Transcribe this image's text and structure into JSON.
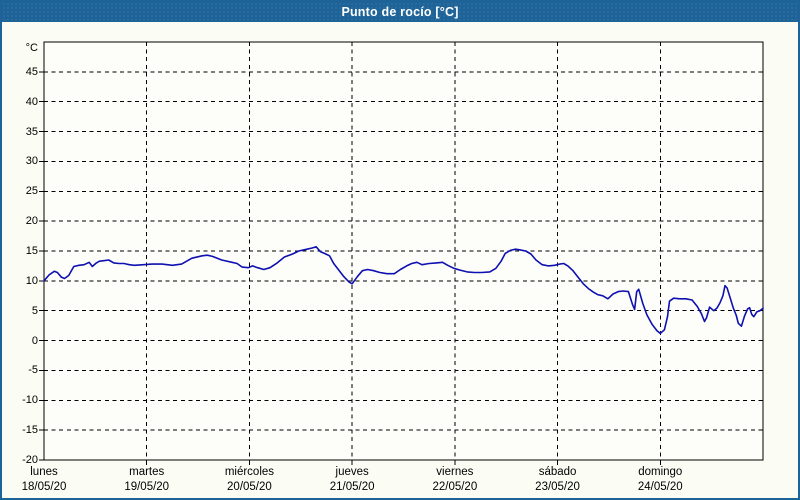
{
  "window": {
    "title": "Punto de rocío [°C]"
  },
  "colors": {
    "frame": "#1d6397",
    "titlebar_bg": "#1d6397",
    "titlebar_text": "#ffffff",
    "page_bg": "#fbfdf5",
    "plot_bg": "#fdfefa",
    "grid": "#000000",
    "text": "#000000",
    "line": "#0f10b0"
  },
  "chart_data": {
    "type": "line",
    "title": "Punto de rocío [°C]",
    "unit_label": "°C",
    "ylim": [
      -20,
      50
    ],
    "ytick_step": 5,
    "yticks": [
      45,
      40,
      35,
      30,
      25,
      20,
      15,
      10,
      5,
      0,
      -5,
      -10,
      -15,
      -20
    ],
    "x_range_days": [
      0,
      7
    ],
    "grid": "dashed-black",
    "legend_position": "none",
    "x_categories": [
      {
        "day": "lunes",
        "date": "18/05/20"
      },
      {
        "day": "martes",
        "date": "19/05/20"
      },
      {
        "day": "miércoles",
        "date": "20/05/20"
      },
      {
        "day": "jueves",
        "date": "21/05/20"
      },
      {
        "day": "viernes",
        "date": "22/05/20"
      },
      {
        "day": "sábado",
        "date": "23/05/20"
      },
      {
        "day": "domingo",
        "date": "24/05/20"
      }
    ],
    "series": [
      {
        "name": "Punto de rocío [°C]",
        "color": "#0f10b0",
        "points_day_temp": [
          [
            0.0,
            10.0
          ],
          [
            0.05,
            11.0
          ],
          [
            0.1,
            11.6
          ],
          [
            0.13,
            11.4
          ],
          [
            0.17,
            10.6
          ],
          [
            0.2,
            10.4
          ],
          [
            0.24,
            10.9
          ],
          [
            0.29,
            12.4
          ],
          [
            0.34,
            12.6
          ],
          [
            0.39,
            12.7
          ],
          [
            0.44,
            13.1
          ],
          [
            0.47,
            12.4
          ],
          [
            0.51,
            13.0
          ],
          [
            0.54,
            13.3
          ],
          [
            0.59,
            13.4
          ],
          [
            0.63,
            13.5
          ],
          [
            0.68,
            13.0
          ],
          [
            0.73,
            12.9
          ],
          [
            0.78,
            12.9
          ],
          [
            0.83,
            12.7
          ],
          [
            0.88,
            12.6
          ],
          [
            0.97,
            12.7
          ],
          [
            1.05,
            12.8
          ],
          [
            1.15,
            12.8
          ],
          [
            1.25,
            12.6
          ],
          [
            1.34,
            12.8
          ],
          [
            1.44,
            13.8
          ],
          [
            1.54,
            14.2
          ],
          [
            1.59,
            14.3
          ],
          [
            1.64,
            14.1
          ],
          [
            1.73,
            13.5
          ],
          [
            1.83,
            13.1
          ],
          [
            1.88,
            12.9
          ],
          [
            1.93,
            12.3
          ],
          [
            1.99,
            12.2
          ],
          [
            2.03,
            12.5
          ],
          [
            2.08,
            12.2
          ],
          [
            2.14,
            11.9
          ],
          [
            2.2,
            12.2
          ],
          [
            2.27,
            13.0
          ],
          [
            2.34,
            14.0
          ],
          [
            2.42,
            14.5
          ],
          [
            2.48,
            15.0
          ],
          [
            2.56,
            15.3
          ],
          [
            2.61,
            15.5
          ],
          [
            2.65,
            15.7
          ],
          [
            2.69,
            14.9
          ],
          [
            2.73,
            14.6
          ],
          [
            2.78,
            14.2
          ],
          [
            2.82,
            12.9
          ],
          [
            2.87,
            11.8
          ],
          [
            2.92,
            10.7
          ],
          [
            2.97,
            9.8
          ],
          [
            3.0,
            9.5
          ],
          [
            3.05,
            10.7
          ],
          [
            3.1,
            11.7
          ],
          [
            3.15,
            11.9
          ],
          [
            3.21,
            11.7
          ],
          [
            3.27,
            11.4
          ],
          [
            3.34,
            11.2
          ],
          [
            3.41,
            11.2
          ],
          [
            3.47,
            11.9
          ],
          [
            3.53,
            12.5
          ],
          [
            3.58,
            12.9
          ],
          [
            3.63,
            13.1
          ],
          [
            3.68,
            12.7
          ],
          [
            3.75,
            12.9
          ],
          [
            3.82,
            13.0
          ],
          [
            3.88,
            13.1
          ],
          [
            3.93,
            12.6
          ],
          [
            3.99,
            12.1
          ],
          [
            4.05,
            11.8
          ],
          [
            4.12,
            11.5
          ],
          [
            4.19,
            11.4
          ],
          [
            4.26,
            11.4
          ],
          [
            4.34,
            11.5
          ],
          [
            4.4,
            12.1
          ],
          [
            4.45,
            13.3
          ],
          [
            4.49,
            14.6
          ],
          [
            4.54,
            15.1
          ],
          [
            4.59,
            15.3
          ],
          [
            4.63,
            15.2
          ],
          [
            4.69,
            15.0
          ],
          [
            4.74,
            14.5
          ],
          [
            4.79,
            13.5
          ],
          [
            4.85,
            12.7
          ],
          [
            4.91,
            12.5
          ],
          [
            4.97,
            12.6
          ],
          [
            5.02,
            12.8
          ],
          [
            5.06,
            12.9
          ],
          [
            5.1,
            12.5
          ],
          [
            5.15,
            11.7
          ],
          [
            5.2,
            10.6
          ],
          [
            5.25,
            9.5
          ],
          [
            5.3,
            8.7
          ],
          [
            5.35,
            8.1
          ],
          [
            5.39,
            7.7
          ],
          [
            5.44,
            7.5
          ],
          [
            5.49,
            7.0
          ],
          [
            5.54,
            7.8
          ],
          [
            5.59,
            8.2
          ],
          [
            5.64,
            8.3
          ],
          [
            5.69,
            8.2
          ],
          [
            5.73,
            6.0
          ],
          [
            5.75,
            5.2
          ],
          [
            5.77,
            8.2
          ],
          [
            5.79,
            8.6
          ],
          [
            5.83,
            6.2
          ],
          [
            5.87,
            4.3
          ],
          [
            5.92,
            2.7
          ],
          [
            5.97,
            1.6
          ],
          [
            6.0,
            1.2
          ],
          [
            6.04,
            1.8
          ],
          [
            6.07,
            4.0
          ],
          [
            6.09,
            6.6
          ],
          [
            6.13,
            7.1
          ],
          [
            6.19,
            7.0
          ],
          [
            6.25,
            7.0
          ],
          [
            6.31,
            6.8
          ],
          [
            6.36,
            5.7
          ],
          [
            6.4,
            4.5
          ],
          [
            6.43,
            3.2
          ],
          [
            6.45,
            3.8
          ],
          [
            6.48,
            5.6
          ],
          [
            6.52,
            5.0
          ],
          [
            6.55,
            5.4
          ],
          [
            6.58,
            6.3
          ],
          [
            6.61,
            7.5
          ],
          [
            6.63,
            9.2
          ],
          [
            6.65,
            8.8
          ],
          [
            6.68,
            7.2
          ],
          [
            6.71,
            5.5
          ],
          [
            6.74,
            4.2
          ],
          [
            6.76,
            2.9
          ],
          [
            6.79,
            2.4
          ],
          [
            6.82,
            4.1
          ],
          [
            6.85,
            5.3
          ],
          [
            6.87,
            5.5
          ],
          [
            6.89,
            4.4
          ],
          [
            6.91,
            4.0
          ],
          [
            6.94,
            4.8
          ],
          [
            6.97,
            5.0
          ],
          [
            7.0,
            5.4
          ]
        ]
      }
    ]
  }
}
